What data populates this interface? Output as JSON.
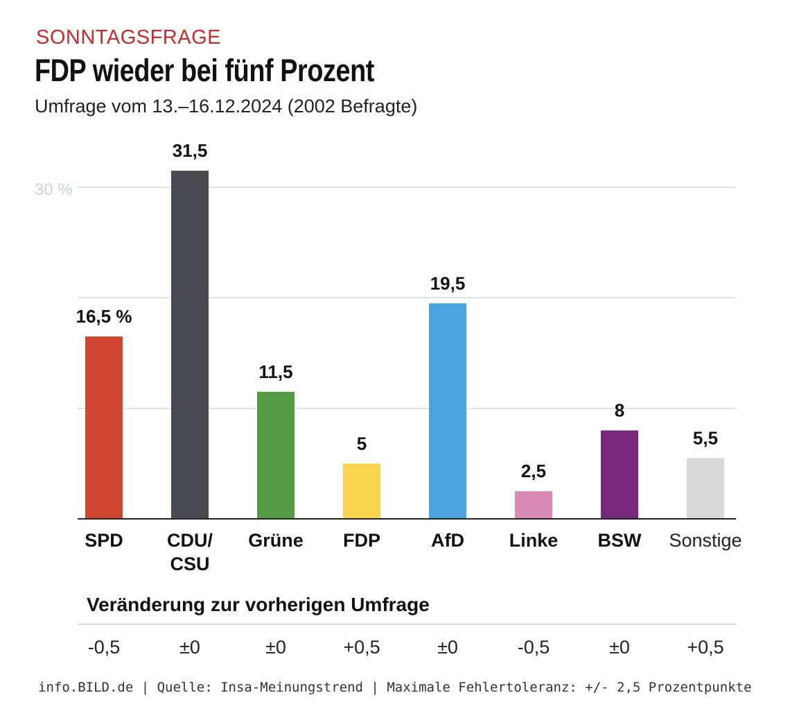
{
  "header": {
    "kicker": "SONNTAGSFRAGE",
    "headline": "FDP wieder bei fünf Prozent",
    "subtitle": "Umfrage vom 13.–16.12.2024 (2002 Befragte)"
  },
  "chart_data": {
    "type": "bar",
    "title": "FDP wieder bei fünf Prozent",
    "subtitle": "Umfrage vom 13.–16.12.2024 (2002 Befragte)",
    "categories": [
      "SPD",
      "CDU/\nCSU",
      "Grüne",
      "FDP",
      "AfD",
      "Linke",
      "BSW",
      "Sonstige"
    ],
    "values": [
      16.5,
      31.5,
      11.5,
      5,
      19.5,
      2.5,
      8,
      5.5
    ],
    "value_labels": [
      "16,5 %",
      "31,5",
      "11,5",
      "5",
      "19,5",
      "2,5",
      "8",
      "5,5"
    ],
    "colors": [
      "#cf4530",
      "#464c52",
      "#559b45",
      "#f5d34c",
      "#4aa3dc",
      "#d98ab4",
      "#76287a",
      "#d8d8d4"
    ],
    "ylim": [
      0,
      30
    ],
    "gridlines": [
      10,
      20,
      30
    ],
    "y_tick_label": "30 %",
    "xlabel": "",
    "ylabel": ""
  },
  "changes": {
    "title": "Veränderung zur vorherigen Umfrage",
    "values": [
      "-0,5",
      "±0",
      "±0",
      "+0,5",
      "±0",
      "-0,5",
      "±0",
      "+0,5"
    ]
  },
  "footer": {
    "source": "info.BILD.de | Quelle: Insa-Meinungstrend | Maximale Fehlertoleranz: +/- 2,5 Prozentpunkte"
  }
}
